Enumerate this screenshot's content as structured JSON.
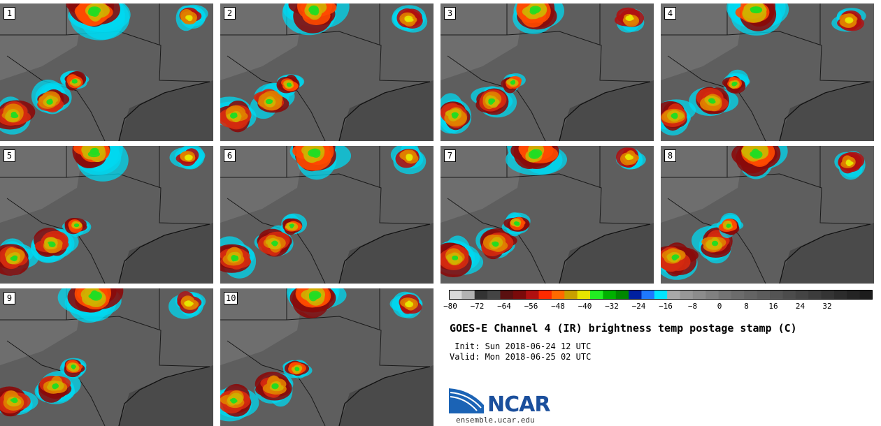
{
  "panels": [
    {
      "label": "1"
    },
    {
      "label": "2"
    },
    {
      "label": "3"
    },
    {
      "label": "4"
    },
    {
      "label": "5"
    },
    {
      "label": "6"
    },
    {
      "label": "7"
    },
    {
      "label": "8"
    },
    {
      "label": "9"
    },
    {
      "label": "10"
    }
  ],
  "colorbar": {
    "colors": [
      "#d9d9d9",
      "#b3b3b3",
      "#333333",
      "#444444",
      "#5a1010",
      "#7a0a0a",
      "#b01010",
      "#ff2a00",
      "#ff6a00",
      "#c8a000",
      "#e6e600",
      "#22ee22",
      "#00b000",
      "#008800",
      "#0020a0",
      "#1e78ff",
      "#00e6ff",
      "#a8a8a8",
      "#989898",
      "#8c8c8c",
      "#808080",
      "#747474",
      "#6c6c6c",
      "#646464",
      "#5c5c5c",
      "#545454",
      "#4c4c4c",
      "#444444",
      "#3c3c3c",
      "#343434",
      "#2c2c2c",
      "#242424",
      "#1c1c1c"
    ],
    "tick_labels": [
      "−80",
      "−72",
      "−64",
      "−56",
      "−48",
      "−40",
      "−32",
      "−24",
      "−16",
      "−8",
      "0",
      "8",
      "16",
      "24",
      "32"
    ]
  },
  "title": "GOES-E Channel 4 (IR) brightness temp postage stamp (C)",
  "init": " Init: Sun 2018-06-24 12 UTC",
  "valid": "Valid: Mon 2018-06-25 02 UTC",
  "logo_text": "NCAR",
  "url": "ensemble.ucar.edu"
}
